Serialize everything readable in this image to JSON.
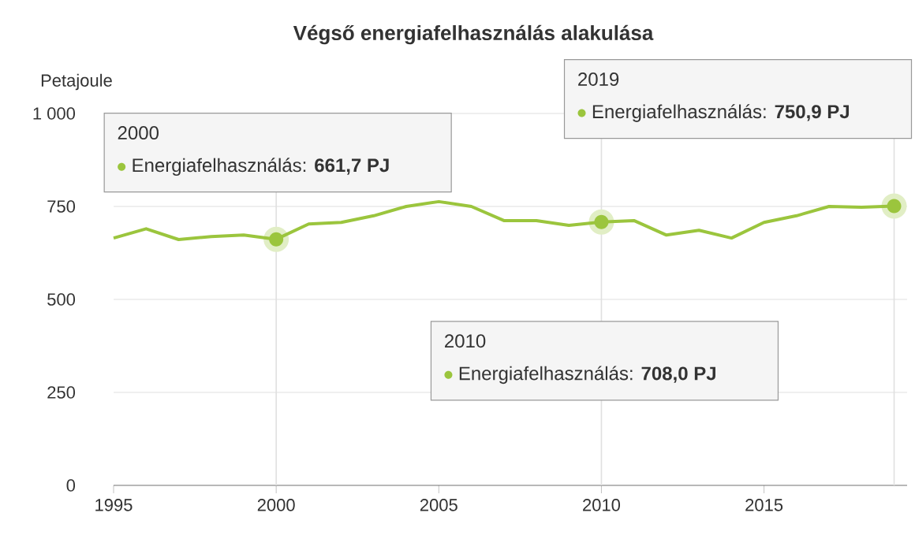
{
  "chart_data": {
    "type": "line",
    "title": "Végső energiafelhasználás alakulása",
    "ylabel": "Petajoule",
    "x": [
      1995,
      1996,
      1997,
      1998,
      1999,
      2000,
      2001,
      2002,
      2003,
      2004,
      2005,
      2006,
      2007,
      2008,
      2009,
      2010,
      2011,
      2012,
      2013,
      2014,
      2015,
      2016,
      2017,
      2018,
      2019
    ],
    "series": [
      {
        "color": "#9bc53d",
        "values": [
          665,
          690,
          661,
          669,
          673,
          661.7,
          703,
          707,
          725,
          750,
          763,
          750,
          712,
          712,
          699,
          708.0,
          712,
          673,
          686,
          665,
          707,
          725,
          750,
          748,
          750.9
        ]
      }
    ],
    "xlim": [
      1995,
      2019.4
    ],
    "ylim": [
      0,
      1000
    ],
    "xticks": [
      1995,
      2000,
      2005,
      2010,
      2015
    ],
    "yticks": [
      0,
      250,
      500,
      750,
      {
        "value": 1000,
        "label": "1 000"
      }
    ],
    "grid": "y",
    "marker": "none",
    "line_style": "solid",
    "ref_lines": [
      {
        "axis": "x",
        "value": 2000
      },
      {
        "axis": "x",
        "value": 2010
      },
      {
        "axis": "x",
        "value": 2019
      }
    ],
    "annotations": [
      "2000",
      "Energiafelhasználás: **661,7 PJ**",
      "2010",
      "Energiafelhasználás: **708,0 PJ**",
      "2019",
      "Energiafelhasználás: **750,9 PJ**"
    ]
  }
}
